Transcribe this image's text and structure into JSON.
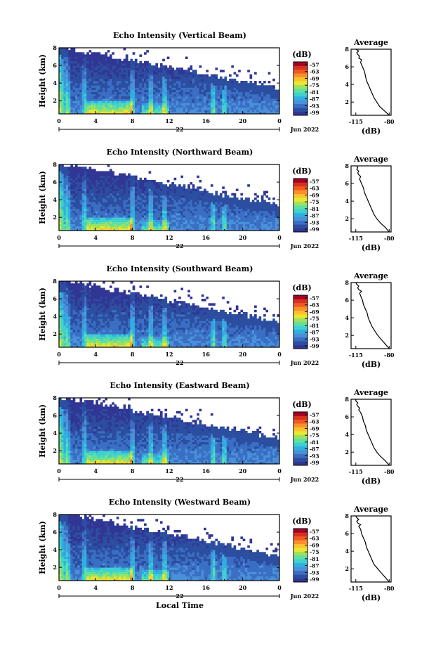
{
  "figure": {
    "shared": {
      "ylabel": "Height (km)",
      "xlabel": "Local Time",
      "date_label": "Jun 2022",
      "day_label": "22",
      "colorbar_unit": "(dB)",
      "avg_title": "Average",
      "avg_xlabel": "(dB)"
    },
    "colors": [
      "#313695",
      "#2c4ea0",
      "#3a6fc4",
      "#4a90d9",
      "#2fb0e0",
      "#3fd0d0",
      "#5fe0a0",
      "#a0e060",
      "#e8e830",
      "#fdc030",
      "#fa9028",
      "#f05a22",
      "#d7301f",
      "#a50026"
    ]
  },
  "chart_data": [
    {
      "type": "heatmap",
      "title": "Echo Intensity (Vertical Beam)",
      "ylabel": "Height (km)",
      "x_ticks": [
        "0",
        "4",
        "8",
        "12",
        "16",
        "20",
        "0"
      ],
      "x": [
        0,
        24
      ],
      "y_ticks": [
        "2",
        "4",
        "6",
        "8"
      ],
      "y": [
        0.5,
        8
      ],
      "colorbar": {
        "unit": "(dB)",
        "ticks": [
          "-57",
          "-63",
          "-69",
          "-75",
          "-81",
          "-87",
          "-93",
          "-99"
        ]
      },
      "average_profile": {
        "title": "Average",
        "xlabel": "(dB)",
        "x_ticks": [
          "-115",
          "-80"
        ],
        "y_ticks": [
          "2",
          "4",
          "6",
          "8"
        ],
        "dB": [
          -80,
          -85,
          -90,
          -93,
          -96,
          -98,
          -100,
          -102,
          -104,
          -105,
          -106,
          -108,
          -110,
          -109,
          -112,
          -111,
          -113,
          -114,
          -112,
          -115
        ],
        "height_km": [
          0.5,
          1,
          1.5,
          2,
          2.5,
          3,
          3.5,
          4,
          4.5,
          5,
          5.5,
          6,
          6.5,
          6.8,
          7,
          7.2,
          7.4,
          7.6,
          7.8,
          8
        ]
      },
      "date_label": "Jun 2022",
      "day_label": "22"
    },
    {
      "type": "heatmap",
      "title": "Echo Intensity (Northward Beam)",
      "ylabel": "Height (km)",
      "x_ticks": [
        "0",
        "4",
        "8",
        "12",
        "16",
        "20",
        "0"
      ],
      "x": [
        0,
        24
      ],
      "y_ticks": [
        "2",
        "4",
        "6",
        "8"
      ],
      "y": [
        0.5,
        8
      ],
      "colorbar": {
        "unit": "(dB)",
        "ticks": [
          "-57",
          "-63",
          "-69",
          "-75",
          "-81",
          "-87",
          "-93",
          "-99"
        ]
      },
      "average_profile": {
        "title": "Average",
        "xlabel": "(dB)",
        "x_ticks": [
          "-115",
          "-80"
        ],
        "y_ticks": [
          "2",
          "4",
          "6",
          "8"
        ],
        "dB": [
          -80,
          -84,
          -89,
          -93,
          -96,
          -98,
          -100,
          -102,
          -104,
          -106,
          -107,
          -109,
          -111,
          -110,
          -112,
          -113,
          -112,
          -114,
          -113,
          -114
        ],
        "height_km": [
          0.5,
          1,
          1.5,
          2,
          2.5,
          3,
          3.5,
          4,
          4.5,
          5,
          5.5,
          6,
          6.5,
          6.8,
          7,
          7.2,
          7.4,
          7.6,
          7.8,
          8
        ]
      },
      "date_label": "Jun 2022",
      "day_label": "22"
    },
    {
      "type": "heatmap",
      "title": "Echo Intensity (Southward Beam)",
      "ylabel": "Height (km)",
      "x_ticks": [
        "0",
        "4",
        "8",
        "12",
        "16",
        "20",
        "0"
      ],
      "x": [
        0,
        24
      ],
      "y_ticks": [
        "2",
        "4",
        "6",
        "8"
      ],
      "y": [
        0.5,
        8
      ],
      "colorbar": {
        "unit": "(dB)",
        "ticks": [
          "-57",
          "-63",
          "-69",
          "-75",
          "-81",
          "-87",
          "-93",
          "-99"
        ]
      },
      "average_profile": {
        "title": "Average",
        "xlabel": "(dB)",
        "x_ticks": [
          "-115",
          "-80"
        ],
        "y_ticks": [
          "2",
          "4",
          "6",
          "8"
        ],
        "dB": [
          -80,
          -84,
          -88,
          -92,
          -95,
          -98,
          -100,
          -102,
          -103,
          -105,
          -107,
          -108,
          -110,
          -111,
          -109,
          -112,
          -113,
          -112,
          -114,
          -115
        ],
        "height_km": [
          0.5,
          1,
          1.5,
          2,
          2.5,
          3,
          3.5,
          4,
          4.5,
          5,
          5.5,
          6,
          6.5,
          6.8,
          7,
          7.2,
          7.4,
          7.6,
          7.8,
          8
        ]
      },
      "date_label": "Jun 2022",
      "day_label": "22"
    },
    {
      "type": "heatmap",
      "title": "Echo Intensity (Eastward Beam)",
      "ylabel": "Height (km)",
      "x_ticks": [
        "0",
        "4",
        "8",
        "12",
        "16",
        "20",
        "0"
      ],
      "x": [
        0,
        24
      ],
      "y_ticks": [
        "2",
        "4",
        "6",
        "8"
      ],
      "y": [
        0.5,
        8
      ],
      "colorbar": {
        "unit": "(dB)",
        "ticks": [
          "-57",
          "-63",
          "-69",
          "-75",
          "-81",
          "-87",
          "-93",
          "-99"
        ]
      },
      "average_profile": {
        "title": "Average",
        "xlabel": "(dB)",
        "x_ticks": [
          "-115",
          "-80"
        ],
        "y_ticks": [
          "2",
          "4",
          "6",
          "8"
        ],
        "dB": [
          -80,
          -84,
          -89,
          -93,
          -96,
          -98,
          -100,
          -102,
          -104,
          -105,
          -107,
          -108,
          -110,
          -112,
          -111,
          -113,
          -114,
          -113,
          -115,
          -115
        ],
        "height_km": [
          0.5,
          1,
          1.5,
          2,
          2.5,
          3,
          3.5,
          4,
          4.5,
          5,
          5.5,
          6,
          6.5,
          6.8,
          7,
          7.2,
          7.4,
          7.6,
          7.8,
          8
        ]
      },
      "date_label": "Jun 2022",
      "day_label": "22"
    },
    {
      "type": "heatmap",
      "title": "Echo Intensity (Westward Beam)",
      "ylabel": "Height (km)",
      "xlabel": "Local Time",
      "x_ticks": [
        "0",
        "4",
        "8",
        "12",
        "16",
        "20",
        "0"
      ],
      "x": [
        0,
        24
      ],
      "y_ticks": [
        "2",
        "4",
        "6",
        "8"
      ],
      "y": [
        0.5,
        8
      ],
      "colorbar": {
        "unit": "(dB)",
        "ticks": [
          "-57",
          "-63",
          "-69",
          "-75",
          "-81",
          "-87",
          "-93",
          "-99"
        ]
      },
      "average_profile": {
        "title": "Average",
        "xlabel": "(dB)",
        "x_ticks": [
          "-115",
          "-80"
        ],
        "y_ticks": [
          "2",
          "4",
          "6",
          "8"
        ],
        "dB": [
          -80,
          -84,
          -88,
          -92,
          -96,
          -98,
          -100,
          -102,
          -104,
          -105,
          -107,
          -109,
          -110,
          -112,
          -110,
          -113,
          -114,
          -112,
          -114,
          -115
        ],
        "height_km": [
          0.5,
          1,
          1.5,
          2,
          2.5,
          3,
          3.5,
          4,
          4.5,
          5,
          5.5,
          6,
          6.5,
          6.8,
          7,
          7.2,
          7.4,
          7.6,
          7.8,
          8
        ]
      },
      "date_label": "Jun 2022",
      "day_label": "22"
    }
  ]
}
